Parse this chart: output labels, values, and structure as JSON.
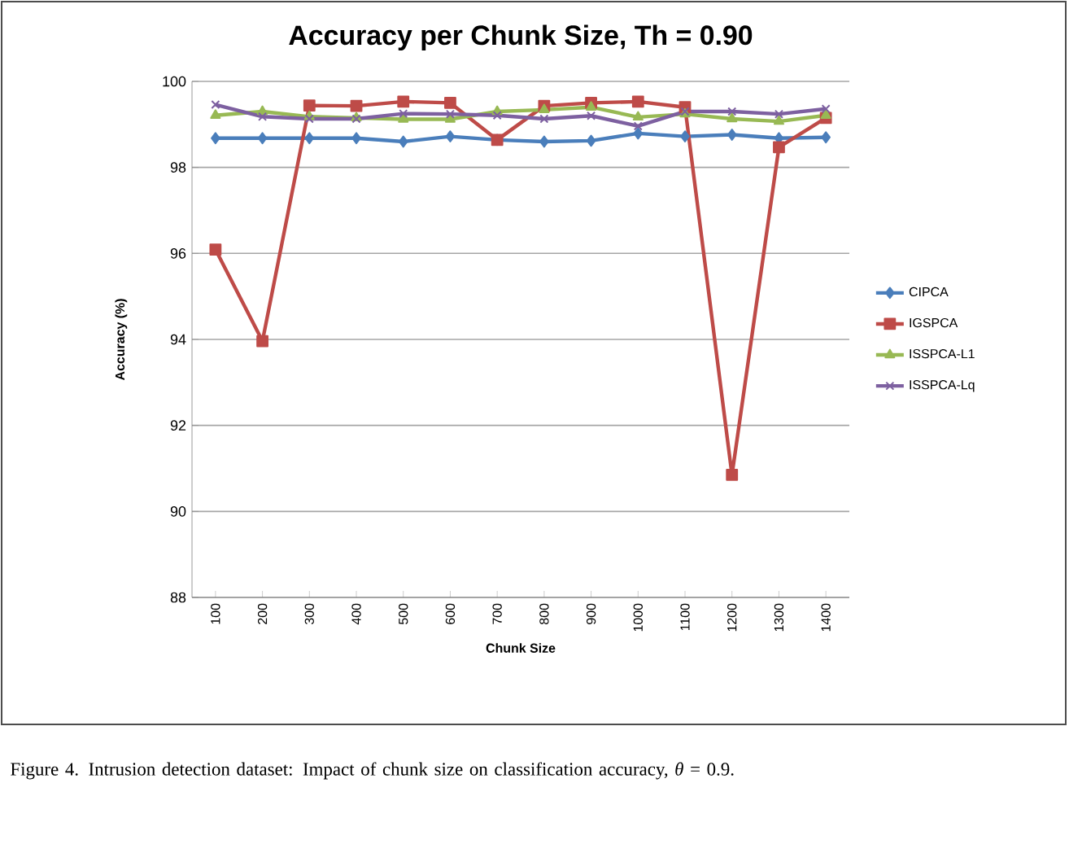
{
  "chart_data": {
    "type": "line",
    "title": "Accuracy per Chunk Size, Th = 0.90",
    "xlabel": "Chunk Size",
    "ylabel": "Accuracy (%)",
    "categories": [
      "100",
      "200",
      "300",
      "400",
      "500",
      "600",
      "700",
      "800",
      "900",
      "1000",
      "1100",
      "1200",
      "1300",
      "1400"
    ],
    "series": [
      {
        "name": "CIPCA",
        "color": "#4a7ebb",
        "marker": "diamond",
        "values": [
          98.68,
          98.68,
          98.68,
          98.68,
          98.6,
          98.72,
          98.64,
          98.6,
          98.62,
          98.79,
          98.72,
          98.76,
          98.68,
          98.7
        ]
      },
      {
        "name": "IGSPCA",
        "color": "#be4b48",
        "marker": "square",
        "values": [
          96.09,
          93.96,
          99.44,
          99.43,
          99.53,
          99.5,
          98.64,
          99.43,
          99.5,
          99.53,
          99.4,
          90.85,
          98.47,
          99.15
        ]
      },
      {
        "name": "ISSPCA-L1",
        "color": "#98b954",
        "marker": "triangle",
        "values": [
          99.21,
          99.3,
          99.18,
          99.15,
          99.12,
          99.12,
          99.3,
          99.34,
          99.4,
          99.17,
          99.24,
          99.13,
          99.07,
          99.21
        ]
      },
      {
        "name": "ISSPCA-Lq",
        "color": "#7d60a0",
        "marker": "cross",
        "values": [
          99.46,
          99.18,
          99.13,
          99.13,
          99.25,
          99.24,
          99.21,
          99.13,
          99.2,
          98.96,
          99.3,
          99.3,
          99.24,
          99.36
        ]
      }
    ],
    "ylim": [
      88,
      100
    ],
    "yticks": [
      88,
      90,
      92,
      94,
      96,
      98,
      100
    ],
    "grid": "y",
    "legend": "right",
    "annotations": [
      "Figure 4. Intrusion detection dataset: Impact of chunk size on classification accuracy, *θ* = 0.9."
    ]
  }
}
